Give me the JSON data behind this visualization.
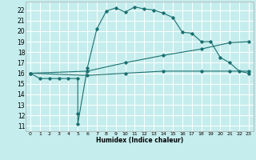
{
  "xlabel": "Humidex (Indice chaleur)",
  "xlim": [
    -0.5,
    23.5
  ],
  "ylim": [
    10.5,
    22.8
  ],
  "yticks": [
    11,
    12,
    13,
    14,
    15,
    16,
    17,
    18,
    19,
    20,
    21,
    22
  ],
  "xticks": [
    0,
    1,
    2,
    3,
    4,
    5,
    6,
    7,
    8,
    9,
    10,
    11,
    12,
    13,
    14,
    15,
    16,
    17,
    18,
    19,
    20,
    21,
    22,
    23
  ],
  "bg": "#c6eded",
  "grid_color": "#ffffff",
  "lc": "#1a7070",
  "curve1_x": [
    0,
    1,
    2,
    3,
    4,
    5,
    5,
    5,
    6,
    7,
    8,
    9,
    10,
    11,
    12,
    13,
    14,
    15,
    16,
    17,
    18,
    19,
    20,
    21,
    22,
    23
  ],
  "curve1_y": [
    16.0,
    15.5,
    15.5,
    15.5,
    15.5,
    15.5,
    12.2,
    11.2,
    16.5,
    20.2,
    21.9,
    22.2,
    21.8,
    22.3,
    22.1,
    22.0,
    21.7,
    21.3,
    19.9,
    19.8,
    19.0,
    19.0,
    17.5,
    17.0,
    16.2,
    16.0
  ],
  "curve2_x": [
    0,
    6,
    10,
    14,
    18,
    21,
    23
  ],
  "curve2_y": [
    16.0,
    16.2,
    17.0,
    17.7,
    18.3,
    18.9,
    19.0
  ],
  "curve3_x": [
    0,
    6,
    10,
    14,
    18,
    21,
    23
  ],
  "curve3_y": [
    16.0,
    15.8,
    16.0,
    16.2,
    16.2,
    16.2,
    16.2
  ]
}
